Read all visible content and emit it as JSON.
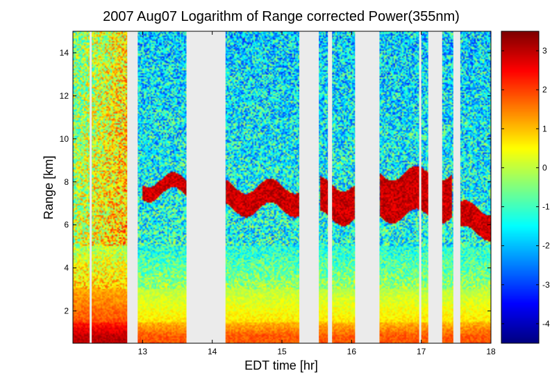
{
  "chart_data": {
    "type": "heatmap",
    "title": "2007 Aug07  Logarithm of Range corrected Power(355nm)",
    "xlabel": "EDT time [hr]",
    "ylabel": "Range [km]",
    "xlim": [
      12.0,
      18.0
    ],
    "ylim": [
      0.5,
      15.0
    ],
    "x_ticks": [
      13,
      14,
      15,
      16,
      17,
      18
    ],
    "y_ticks": [
      2,
      4,
      6,
      8,
      10,
      12,
      14
    ],
    "colorbar": {
      "colormap": "jet",
      "clim": [
        -4.5,
        3.5
      ],
      "ticks": [
        -4,
        -3,
        -2,
        -1,
        0,
        1,
        2,
        3
      ]
    },
    "data_gaps_hr": [
      [
        12.24,
        12.27
      ],
      [
        12.78,
        12.93
      ],
      [
        13.63,
        14.19
      ],
      [
        15.25,
        15.53
      ],
      [
        15.66,
        15.72
      ],
      [
        16.05,
        16.4
      ],
      [
        16.97,
        17.0
      ],
      [
        17.1,
        17.3
      ],
      [
        17.46,
        17.56
      ]
    ],
    "cloud_layers": [
      {
        "t_start": 13.0,
        "t_end": 13.63,
        "base_km": 7.4,
        "top_km": 8.1
      },
      {
        "t_start": 14.2,
        "t_end": 15.25,
        "base_km": 6.7,
        "top_km": 7.8
      },
      {
        "t_start": 15.55,
        "t_end": 16.05,
        "base_km": 6.3,
        "top_km": 7.9
      },
      {
        "t_start": 16.4,
        "t_end": 17.45,
        "base_km": 6.4,
        "top_km": 8.4
      },
      {
        "t_start": 17.56,
        "t_end": 18.0,
        "base_km": 5.6,
        "top_km": 6.8
      }
    ],
    "boundary_layer_top_km": 3.0,
    "grid": false
  },
  "colors": {
    "gap": "#ebebeb",
    "frame": "#000000",
    "background": "#ffffff"
  }
}
